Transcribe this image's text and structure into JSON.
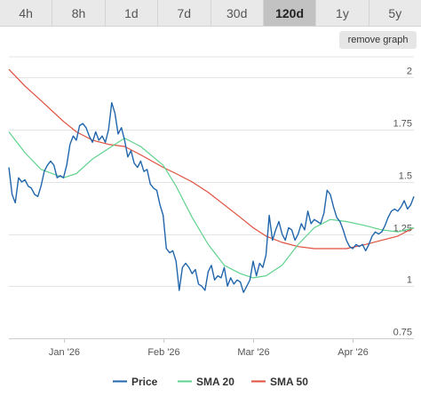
{
  "tabs": [
    {
      "label": "4h",
      "active": false
    },
    {
      "label": "8h",
      "active": false
    },
    {
      "label": "1d",
      "active": false
    },
    {
      "label": "7d",
      "active": false
    },
    {
      "label": "30d",
      "active": false
    },
    {
      "label": "120d",
      "active": true
    },
    {
      "label": "1y",
      "active": false
    },
    {
      "label": "5y",
      "active": false
    }
  ],
  "remove_graph_label": "remove graph",
  "colors": {
    "price": "#2166ac",
    "sma20": "#5fd38d",
    "sma50": "#e0503c",
    "grid": "#e4e4e4",
    "axis_text": "#555555",
    "tab_bg": "#e9e9e9",
    "tab_active_bg": "#c2c2c2"
  },
  "chart_data": {
    "type": "line",
    "ylim": [
      0.75,
      2.1
    ],
    "xlim": [
      "2025-12-15",
      "2026-04-20"
    ],
    "y_ticks": [
      "2",
      "1.75",
      "1.5",
      "1.25",
      "1",
      "0.75"
    ],
    "y_tick_values": [
      2,
      1.75,
      1.5,
      1.25,
      1,
      0.75
    ],
    "x_ticks": [
      "Jan '26",
      "Feb '26",
      "Mar '26",
      "Apr '26"
    ],
    "x_tick_dates": [
      "2026-01-01",
      "2026-02-01",
      "2026-03-01",
      "2026-04-01"
    ],
    "grid": true,
    "legend_position": "bottom",
    "series": [
      {
        "name": "Price",
        "color_key": "price",
        "points": [
          [
            "2025-12-15",
            1.57
          ],
          [
            "2025-12-16",
            1.44
          ],
          [
            "2025-12-17",
            1.4
          ],
          [
            "2025-12-18",
            1.52
          ],
          [
            "2025-12-19",
            1.5
          ],
          [
            "2025-12-20",
            1.51
          ],
          [
            "2025-12-21",
            1.48
          ],
          [
            "2025-12-22",
            1.47
          ],
          [
            "2025-12-23",
            1.44
          ],
          [
            "2025-12-24",
            1.43
          ],
          [
            "2025-12-25",
            1.48
          ],
          [
            "2025-12-26",
            1.55
          ],
          [
            "2025-12-27",
            1.58
          ],
          [
            "2025-12-28",
            1.6
          ],
          [
            "2025-12-29",
            1.58
          ],
          [
            "2025-12-30",
            1.52
          ],
          [
            "2025-12-31",
            1.53
          ],
          [
            "2026-01-01",
            1.52
          ],
          [
            "2026-01-02",
            1.58
          ],
          [
            "2026-01-03",
            1.68
          ],
          [
            "2026-01-04",
            1.72
          ],
          [
            "2026-01-05",
            1.7
          ],
          [
            "2026-01-06",
            1.77
          ],
          [
            "2026-01-07",
            1.78
          ],
          [
            "2026-01-08",
            1.76
          ],
          [
            "2026-01-09",
            1.72
          ],
          [
            "2026-01-10",
            1.69
          ],
          [
            "2026-01-11",
            1.74
          ],
          [
            "2026-01-12",
            1.7
          ],
          [
            "2026-01-13",
            1.72
          ],
          [
            "2026-01-14",
            1.69
          ],
          [
            "2026-01-15",
            1.75
          ],
          [
            "2026-01-16",
            1.88
          ],
          [
            "2026-01-17",
            1.83
          ],
          [
            "2026-01-18",
            1.73
          ],
          [
            "2026-01-19",
            1.76
          ],
          [
            "2026-01-20",
            1.7
          ],
          [
            "2026-01-21",
            1.62
          ],
          [
            "2026-01-22",
            1.65
          ],
          [
            "2026-01-23",
            1.59
          ],
          [
            "2026-01-24",
            1.57
          ],
          [
            "2026-01-25",
            1.6
          ],
          [
            "2026-01-26",
            1.55
          ],
          [
            "2026-01-27",
            1.56
          ],
          [
            "2026-01-28",
            1.49
          ],
          [
            "2026-01-29",
            1.47
          ],
          [
            "2026-01-30",
            1.46
          ],
          [
            "2026-01-31",
            1.39
          ],
          [
            "2026-02-01",
            1.34
          ],
          [
            "2026-02-02",
            1.18
          ],
          [
            "2026-02-03",
            1.16
          ],
          [
            "2026-02-04",
            1.17
          ],
          [
            "2026-02-05",
            1.12
          ],
          [
            "2026-02-06",
            0.98
          ],
          [
            "2026-02-07",
            1.09
          ],
          [
            "2026-02-08",
            1.11
          ],
          [
            "2026-02-09",
            1.09
          ],
          [
            "2026-02-10",
            1.06
          ],
          [
            "2026-02-11",
            1.08
          ],
          [
            "2026-02-12",
            1.01
          ],
          [
            "2026-02-13",
            1.0
          ],
          [
            "2026-02-14",
            0.98
          ],
          [
            "2026-02-15",
            1.07
          ],
          [
            "2026-02-16",
            1.1
          ],
          [
            "2026-02-17",
            1.03
          ],
          [
            "2026-02-18",
            1.05
          ],
          [
            "2026-02-19",
            1.04
          ],
          [
            "2026-02-20",
            1.09
          ],
          [
            "2026-02-21",
            1.0
          ],
          [
            "2026-02-22",
            1.04
          ],
          [
            "2026-02-23",
            1.01
          ],
          [
            "2026-02-24",
            1.03
          ],
          [
            "2026-02-25",
            1.02
          ],
          [
            "2026-02-26",
            0.97
          ],
          [
            "2026-02-27",
            1.0
          ],
          [
            "2026-02-28",
            1.03
          ],
          [
            "2026-03-01",
            1.12
          ],
          [
            "2026-03-02",
            1.05
          ],
          [
            "2026-03-03",
            1.11
          ],
          [
            "2026-03-04",
            1.09
          ],
          [
            "2026-03-05",
            1.15
          ],
          [
            "2026-03-06",
            1.34
          ],
          [
            "2026-03-07",
            1.22
          ],
          [
            "2026-03-08",
            1.27
          ],
          [
            "2026-03-09",
            1.31
          ],
          [
            "2026-03-10",
            1.25
          ],
          [
            "2026-03-11",
            1.22
          ],
          [
            "2026-03-12",
            1.28
          ],
          [
            "2026-03-13",
            1.27
          ],
          [
            "2026-03-14",
            1.22
          ],
          [
            "2026-03-15",
            1.25
          ],
          [
            "2026-03-16",
            1.3
          ],
          [
            "2026-03-17",
            1.27
          ],
          [
            "2026-03-18",
            1.36
          ],
          [
            "2026-03-19",
            1.3
          ],
          [
            "2026-03-20",
            1.32
          ],
          [
            "2026-03-21",
            1.31
          ],
          [
            "2026-03-22",
            1.3
          ],
          [
            "2026-03-23",
            1.35
          ],
          [
            "2026-03-24",
            1.46
          ],
          [
            "2026-03-25",
            1.44
          ],
          [
            "2026-03-26",
            1.38
          ],
          [
            "2026-03-27",
            1.33
          ],
          [
            "2026-03-28",
            1.31
          ],
          [
            "2026-03-29",
            1.27
          ],
          [
            "2026-03-30",
            1.22
          ],
          [
            "2026-03-31",
            1.19
          ],
          [
            "2026-04-01",
            1.18
          ],
          [
            "2026-04-02",
            1.2
          ],
          [
            "2026-04-03",
            1.19
          ],
          [
            "2026-04-04",
            1.2
          ],
          [
            "2026-04-05",
            1.17
          ],
          [
            "2026-04-06",
            1.2
          ],
          [
            "2026-04-07",
            1.24
          ],
          [
            "2026-04-08",
            1.26
          ],
          [
            "2026-04-09",
            1.25
          ],
          [
            "2026-04-10",
            1.26
          ],
          [
            "2026-04-11",
            1.29
          ],
          [
            "2026-04-12",
            1.33
          ],
          [
            "2026-04-13",
            1.36
          ],
          [
            "2026-04-14",
            1.37
          ],
          [
            "2026-04-15",
            1.36
          ],
          [
            "2026-04-16",
            1.38
          ],
          [
            "2026-04-17",
            1.41
          ],
          [
            "2026-04-18",
            1.37
          ],
          [
            "2026-04-19",
            1.39
          ],
          [
            "2026-04-20",
            1.43
          ]
        ]
      },
      {
        "name": "SMA 20",
        "color_key": "sma20",
        "points": [
          [
            "2025-12-15",
            1.74
          ],
          [
            "2025-12-20",
            1.64
          ],
          [
            "2025-12-25",
            1.56
          ],
          [
            "2026-01-01",
            1.52
          ],
          [
            "2026-01-05",
            1.54
          ],
          [
            "2026-01-10",
            1.61
          ],
          [
            "2026-01-15",
            1.66
          ],
          [
            "2026-01-20",
            1.71
          ],
          [
            "2026-01-25",
            1.67
          ],
          [
            "2026-02-01",
            1.58
          ],
          [
            "2026-02-05",
            1.48
          ],
          [
            "2026-02-10",
            1.33
          ],
          [
            "2026-02-15",
            1.2
          ],
          [
            "2026-02-20",
            1.1
          ],
          [
            "2026-02-25",
            1.06
          ],
          [
            "2026-03-01",
            1.04
          ],
          [
            "2026-03-05",
            1.05
          ],
          [
            "2026-03-10",
            1.1
          ],
          [
            "2026-03-15",
            1.2
          ],
          [
            "2026-03-20",
            1.28
          ],
          [
            "2026-03-25",
            1.32
          ],
          [
            "2026-03-30",
            1.31
          ],
          [
            "2026-04-05",
            1.29
          ],
          [
            "2026-04-10",
            1.27
          ],
          [
            "2026-04-15",
            1.26
          ],
          [
            "2026-04-20",
            1.28
          ]
        ]
      },
      {
        "name": "SMA 50",
        "color_key": "sma50",
        "points": [
          [
            "2025-12-15",
            2.04
          ],
          [
            "2025-12-20",
            1.96
          ],
          [
            "2025-12-25",
            1.89
          ],
          [
            "2026-01-01",
            1.79
          ],
          [
            "2026-01-05",
            1.74
          ],
          [
            "2026-01-10",
            1.7
          ],
          [
            "2026-01-15",
            1.68
          ],
          [
            "2026-01-20",
            1.67
          ],
          [
            "2026-01-25",
            1.63
          ],
          [
            "2026-02-01",
            1.57
          ],
          [
            "2026-02-05",
            1.54
          ],
          [
            "2026-02-10",
            1.5
          ],
          [
            "2026-02-15",
            1.45
          ],
          [
            "2026-02-20",
            1.39
          ],
          [
            "2026-02-25",
            1.33
          ],
          [
            "2026-03-01",
            1.28
          ],
          [
            "2026-03-05",
            1.24
          ],
          [
            "2026-03-10",
            1.21
          ],
          [
            "2026-03-15",
            1.19
          ],
          [
            "2026-03-20",
            1.18
          ],
          [
            "2026-03-25",
            1.18
          ],
          [
            "2026-03-30",
            1.18
          ],
          [
            "2026-04-05",
            1.2
          ],
          [
            "2026-04-10",
            1.22
          ],
          [
            "2026-04-15",
            1.24
          ],
          [
            "2026-04-20",
            1.28
          ]
        ]
      }
    ]
  }
}
